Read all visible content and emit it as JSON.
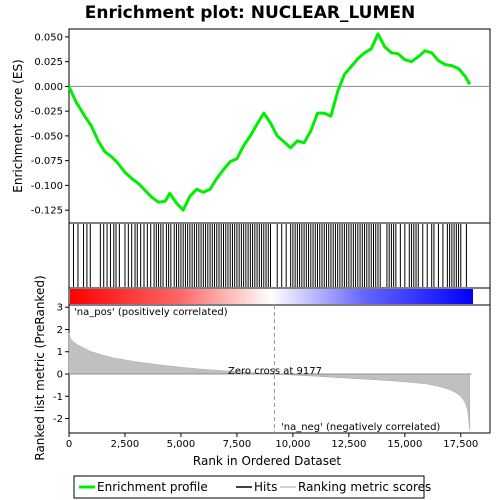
{
  "chart_data": [
    {
      "type": "line",
      "title": "Enrichment plot: NUCLEAR_LUMEN",
      "xlabel": "",
      "ylabel": "Enrichment score (ES)",
      "xlim": [
        0,
        18000
      ],
      "ylim": [
        -0.138,
        0.058
      ],
      "yticks": [
        -0.125,
        -0.1,
        -0.075,
        -0.05,
        -0.025,
        0.0,
        0.025,
        0.05
      ],
      "ytick_labels": [
        "-0.125",
        "-0.100",
        "-0.075",
        "-0.050",
        "-0.025",
        "0.000",
        "0.025",
        "0.050"
      ],
      "zero_line": true,
      "grid": false,
      "series": [
        {
          "name": "Enrichment profile",
          "color": "#00ee00",
          "x": [
            0,
            300,
            700,
            1000,
            1300,
            1600,
            1900,
            2200,
            2500,
            2800,
            3100,
            3400,
            3700,
            4000,
            4300,
            4500,
            4800,
            5100,
            5400,
            5700,
            6000,
            6300,
            6600,
            6900,
            7200,
            7500,
            7800,
            8100,
            8400,
            8700,
            9000,
            9300,
            9600,
            9900,
            10200,
            10500,
            10800,
            11100,
            11400,
            11700,
            12000,
            12300,
            12600,
            12900,
            13200,
            13500,
            13800,
            14100,
            14400,
            14700,
            15000,
            15300,
            15600,
            15900,
            16200,
            16500,
            16800,
            17100,
            17400,
            17700,
            17900
          ],
          "y": [
            0.0,
            -0.015,
            -0.03,
            -0.04,
            -0.055,
            -0.066,
            -0.071,
            -0.078,
            -0.087,
            -0.093,
            -0.098,
            -0.105,
            -0.112,
            -0.117,
            -0.116,
            -0.108,
            -0.118,
            -0.125,
            -0.111,
            -0.104,
            -0.107,
            -0.104,
            -0.093,
            -0.084,
            -0.076,
            -0.073,
            -0.06,
            -0.05,
            -0.038,
            -0.027,
            -0.037,
            -0.05,
            -0.056,
            -0.062,
            -0.055,
            -0.057,
            -0.045,
            -0.027,
            -0.027,
            -0.03,
            -0.005,
            0.012,
            0.02,
            0.028,
            0.034,
            0.038,
            0.053,
            0.04,
            0.034,
            0.033,
            0.027,
            0.025,
            0.03,
            0.036,
            0.034,
            0.026,
            0.022,
            0.021,
            0.018,
            0.01,
            0.002
          ]
        }
      ]
    },
    {
      "type": "scatter",
      "title": "",
      "xlabel": "",
      "ylabel": "",
      "series": [
        {
          "name": "Hits",
          "color": "#000000",
          "x": [
            200,
            400,
            650,
            800,
            950,
            1400,
            1550,
            1700,
            1850,
            2000,
            2100,
            2250,
            2500,
            2650,
            2800,
            2950,
            3050,
            3200,
            3350,
            3500,
            3650,
            3800,
            3900,
            4000,
            4100,
            4200,
            4350,
            4450,
            4550,
            4700,
            4800,
            4900,
            5000,
            5100,
            5200,
            5300,
            5400,
            5500,
            5600,
            5700,
            5800,
            5900,
            6000,
            6100,
            6200,
            6300,
            6400,
            6500,
            6600,
            6700,
            6800,
            6900,
            7000,
            7100,
            7200,
            7300,
            7400,
            7500,
            7600,
            7700,
            7800,
            7900,
            8000,
            8100,
            8200,
            8300,
            8400,
            8500,
            8600,
            8700,
            8800,
            8900,
            9000,
            9300,
            9500,
            9700,
            9900,
            10000,
            10100,
            10200,
            10300,
            10400,
            10500,
            10600,
            10700,
            10800,
            10900,
            11000,
            11100,
            11200,
            11300,
            11400,
            11500,
            11600,
            11700,
            11800,
            11900,
            12000,
            12100,
            12200,
            12300,
            12400,
            12500,
            12600,
            12700,
            12800,
            12900,
            13000,
            13100,
            13200,
            13300,
            13400,
            13500,
            13600,
            13700,
            13800,
            13900,
            14200,
            14300,
            14400,
            14500,
            14600,
            14800,
            15000,
            15200,
            15300,
            15400,
            15500,
            15600,
            15800,
            16000,
            16200,
            16300,
            16500,
            16700,
            16900,
            17000,
            17100,
            17200,
            17300,
            17400,
            17500,
            17750
          ]
        }
      ]
    },
    {
      "type": "area",
      "title": "",
      "xlabel": "Rank in Ordered Dataset",
      "ylabel": "Ranked list metric (PreRanked)",
      "xlim": [
        0,
        18000
      ],
      "ylim": [
        -2.65,
        3.1
      ],
      "xticks": [
        0,
        2500,
        5000,
        7500,
        10000,
        12500,
        15000,
        17500
      ],
      "xtick_labels": [
        "0",
        "2,500",
        "5,000",
        "7,500",
        "10,000",
        "12,500",
        "15,000",
        "17,500"
      ],
      "yticks": [
        -2,
        -1,
        0,
        1,
        2,
        3
      ],
      "ytick_labels": [
        "-2",
        "-1",
        "0",
        "1",
        "2",
        "3"
      ],
      "zero_cross": 9177,
      "series": [
        {
          "name": "Ranking metric scores",
          "color": "#c0c0c0",
          "x": [
            0,
            50,
            100,
            200,
            400,
            700,
            1000,
            1500,
            2000,
            3000,
            4000,
            5000,
            6000,
            7000,
            8000,
            9177,
            10000,
            11000,
            12000,
            13000,
            14000,
            15000,
            16000,
            16500,
            17000,
            17300,
            17500,
            17700,
            17800,
            17850,
            17900
          ],
          "y": [
            1.85,
            1.65,
            1.55,
            1.45,
            1.3,
            1.15,
            1.0,
            0.85,
            0.72,
            0.55,
            0.42,
            0.3,
            0.21,
            0.14,
            0.07,
            0.0,
            -0.05,
            -0.1,
            -0.16,
            -0.22,
            -0.28,
            -0.35,
            -0.45,
            -0.55,
            -0.7,
            -0.85,
            -1.0,
            -1.3,
            -1.6,
            -2.0,
            -2.55
          ]
        }
      ],
      "annotations": {
        "pos": "'na_pos' (positively correlated)",
        "neg": "'na_neg' (negatively correlated)",
        "zero": "Zero cross at 9177"
      }
    }
  ],
  "legend": {
    "items": [
      {
        "label": "Enrichment profile",
        "color": "#00ee00",
        "kind": "thick-line"
      },
      {
        "label": "Hits",
        "color": "#000000",
        "kind": "line"
      },
      {
        "label": "Ranking metric scores",
        "color": "#c0c0c0",
        "kind": "line"
      }
    ]
  },
  "colors": {
    "pos_bar": "#ff0000",
    "neg_bar": "#0000ff",
    "neutral_bar": "#ffffff",
    "pos_text": "#cc0000",
    "neg_text": "#0000cc",
    "frame": "#000000"
  }
}
